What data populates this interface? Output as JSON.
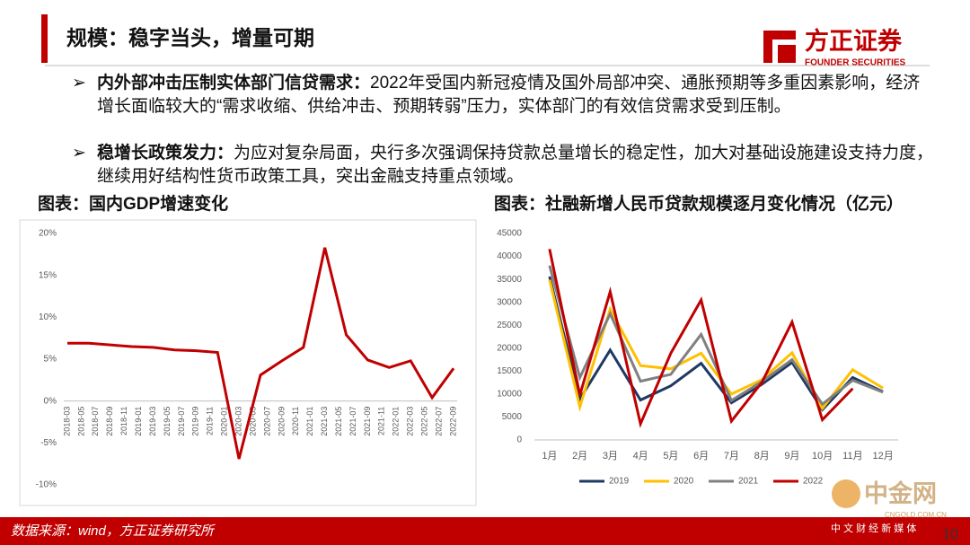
{
  "header": {
    "title": "规模：稳字当头，增量可期",
    "logo": "方正证券",
    "logo_sub": "FOUNDER SECURITIES"
  },
  "bullets": [
    {
      "bold": "内外部冲击压制实体部门信贷需求：",
      "text": "2022年受国内新冠疫情及国外局部冲突、通胀预期等多重因素影响，经济增长面临较大的“需求收缩、供给冲击、预期转弱”压力，实体部门的有效信贷需求受到压制。"
    },
    {
      "bold": "稳增长政策发力：",
      "text": "为应对复杂局面，央行多次强调保持贷款总量增长的稳定性，加大对基础设施建设支持力度，继续用好结构性货币政策工具，突出金融支持重点领域。"
    }
  ],
  "chart_data": [
    {
      "type": "line",
      "title": "图表：国内GDP增速变化",
      "x": [
        "2018-03",
        "2018-06",
        "2018-09",
        "2018-12",
        "2019-03",
        "2019-06",
        "2019-09",
        "2019-12",
        "2020-03",
        "2020-06",
        "2020-09",
        "2020-12",
        "2021-03",
        "2021-06",
        "2021-09",
        "2021-12",
        "2022-03",
        "2022-06",
        "2022-09"
      ],
      "series": [
        {
          "color": "#c00000",
          "values": [
            6.9,
            6.9,
            6.7,
            6.5,
            6.4,
            6.1,
            6.0,
            5.8,
            -6.9,
            3.1,
            4.8,
            6.4,
            18.3,
            7.9,
            4.9,
            4.0,
            4.8,
            0.4,
            3.9
          ]
        }
      ],
      "xticks": [
        "2018-03",
        "2018-05",
        "2018-07",
        "2018-09",
        "2018-11",
        "2019-01",
        "2019-03",
        "2019-05",
        "2019-07",
        "2019-09",
        "2019-11",
        "2020-01",
        "2020-03",
        "2020-05",
        "2020-07",
        "2020-09",
        "2020-11",
        "2021-01",
        "2021-03",
        "2021-05",
        "2021-07",
        "2021-09",
        "2021-11",
        "2022-01",
        "2022-03",
        "2022-05",
        "2022-07",
        "2022-09"
      ],
      "ylim": [
        -10,
        20
      ],
      "yticks": [
        {
          "value": -10,
          "label": "-10%"
        },
        {
          "value": -5,
          "label": "-5%"
        },
        {
          "value": 0,
          "label": "0%"
        },
        {
          "value": 5,
          "label": "5%"
        },
        {
          "value": 10,
          "label": "10%"
        },
        {
          "value": 15,
          "label": "15%"
        },
        {
          "value": 20,
          "label": "20%"
        }
      ]
    },
    {
      "type": "line",
      "title": "图表：社融新增人民币贷款规模逐月变化情况（亿元）",
      "categories": [
        "1月",
        "2月",
        "3月",
        "4月",
        "5月",
        "6月",
        "7月",
        "8月",
        "9月",
        "10月",
        "11月",
        "12月"
      ],
      "series": [
        {
          "name": "2019",
          "color": "#203864",
          "values": [
            35600,
            8900,
            19600,
            8700,
            11800,
            16700,
            8100,
            12100,
            16900,
            6600,
            13600,
            10500
          ]
        },
        {
          "name": "2020",
          "color": "#ffc000",
          "values": [
            34900,
            7200,
            28500,
            16200,
            15500,
            18900,
            10000,
            13100,
            19000,
            6900,
            15300,
            11300
          ]
        },
        {
          "name": "2021",
          "color": "#808080",
          "values": [
            38000,
            13600,
            27500,
            12800,
            14300,
            23000,
            8600,
            12700,
            17500,
            7800,
            13000,
            10400
          ]
        },
        {
          "name": "2022",
          "color": "#c00000",
          "values": [
            41600,
            9800,
            32300,
            3500,
            18900,
            30500,
            4100,
            12500,
            25700,
            4400,
            11200,
            null
          ]
        }
      ],
      "ylim": [
        0,
        45000
      ],
      "yticks": [
        0,
        5000,
        10000,
        15000,
        20000,
        25000,
        30000,
        35000,
        40000,
        45000
      ],
      "legend": "bottom"
    }
  ],
  "footer": {
    "source": "数据来源：wind，方正证券研究所",
    "page": "10"
  },
  "watermark": {
    "name": "中金网",
    "url": "CNGOLD.COM.CN",
    "tagline": "中 文 财 经 新 媒 体"
  }
}
